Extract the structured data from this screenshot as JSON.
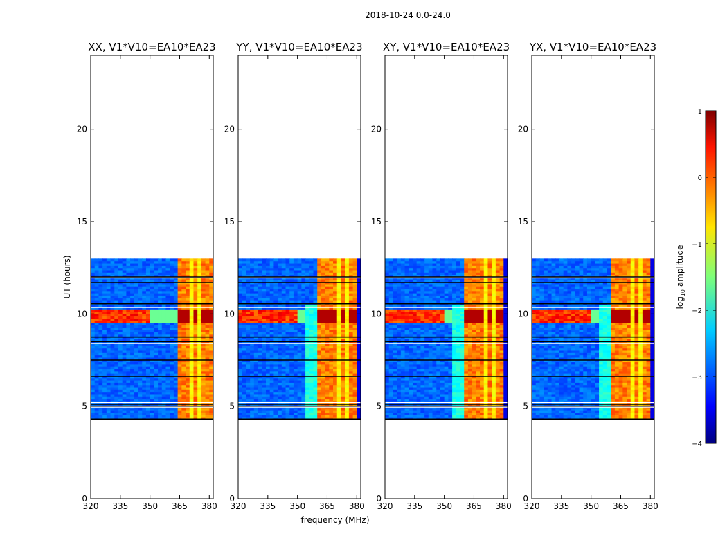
{
  "figure": {
    "suptitle": "2018-10-24 0.0-24.0"
  },
  "chart_data": {
    "type": "heatmap",
    "xlabel": "frequency (MHz)",
    "ylabel": "UT (hours)",
    "xlim": [
      320,
      382
    ],
    "ylim": [
      0,
      24
    ],
    "xticks": [
      320,
      335,
      350,
      365,
      380
    ],
    "yticks": [
      0,
      5,
      10,
      15,
      20
    ],
    "panels": [
      {
        "title": "XX, V1*V10=EA10*EA23",
        "bright_band_mhz": [
          363.5,
          381.5
        ],
        "side_bump": false
      },
      {
        "title": "YY, V1*V10=EA10*EA23",
        "bright_band_mhz": [
          360.5,
          379.5
        ],
        "side_bump": true
      },
      {
        "title": "XY, V1*V10=EA10*EA23",
        "bright_band_mhz": [
          360.5,
          379.5
        ],
        "side_bump": true
      },
      {
        "title": "YX, V1*V10=EA10*EA23",
        "bright_band_mhz": [
          360.5,
          379.5
        ],
        "side_bump": true
      }
    ],
    "data_time_range_hours": [
      4.3,
      13.0
    ],
    "strong_rfi_hours": [
      9.5,
      10.3
    ],
    "flagged_rows_hours": [
      4.3,
      4.95,
      5.0,
      5.1,
      5.2,
      6.6,
      7.5,
      8.4,
      8.5,
      8.75,
      10.35,
      10.55,
      11.7,
      11.95,
      12.0
    ],
    "colorbar": {
      "label": "log10 amplitude",
      "label_prefix": "log",
      "label_sub": "10",
      "label_suffix": " amplitude",
      "range": [
        -4,
        1
      ],
      "ticks": [
        1,
        0,
        -1,
        -2,
        -3,
        -4
      ],
      "colormap": "jet"
    }
  }
}
